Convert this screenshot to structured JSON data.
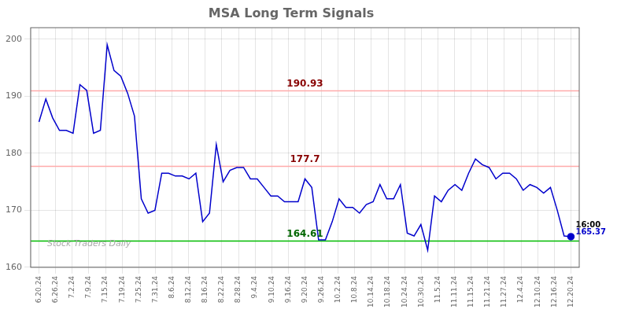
{
  "chart_data": {
    "type": "line",
    "title": "MSA Long Term Signals",
    "x": [
      0,
      0.410256,
      0.820513,
      1.230769,
      1.641026,
      2.051282,
      2.461538,
      2.871795,
      3.282051,
      3.692308,
      4.102564,
      4.512821,
      4.923077,
      5.333333,
      5.74359,
      6.153846,
      6.564103,
      6.974359,
      7.384615,
      7.794872,
      8.205128,
      8.615385,
      9.025641,
      9.435897,
      9.846154,
      10.25641,
      10.666667,
      11.076923,
      11.487179,
      11.897436,
      12.307692,
      12.717949,
      13.128205,
      13.538462,
      13.948718,
      14.358974,
      14.769231,
      15.179487,
      15.589744,
      16,
      16.410256,
      16.820513,
      17.230769,
      17.641026,
      18.051282,
      18.461538,
      18.871795,
      19.282051,
      19.692308,
      20.102564,
      20.512821,
      20.923077,
      21.333333,
      21.74359,
      22.153846,
      22.564103,
      22.974359,
      23.384615,
      23.794872,
      24.205128,
      24.615385,
      25.025641,
      25.435897,
      25.846154,
      26.25641,
      26.666667,
      27.076923,
      27.487179,
      27.897436,
      28.307692,
      28.717949,
      29.128205,
      29.538462,
      29.948718,
      30.358974,
      30.769231,
      31.179487,
      31.589744,
      32
    ],
    "values": [
      185.5,
      189.5,
      186.2,
      184.0,
      184.0,
      183.5,
      192.0,
      191.0,
      183.5,
      184.0,
      199.0,
      194.5,
      193.5,
      190.5,
      186.5,
      172.0,
      169.5,
      170.0,
      176.5,
      176.5,
      176.0,
      176.0,
      175.5,
      176.5,
      168.0,
      169.5,
      181.5,
      175.0,
      177.0,
      177.5,
      177.5,
      175.5,
      175.5,
      174.0,
      172.5,
      172.5,
      171.5,
      171.5,
      171.5,
      175.5,
      174.0,
      164.8,
      164.8,
      168.0,
      172.0,
      170.5,
      170.5,
      169.5,
      171.0,
      171.5,
      174.5,
      172.0,
      172.0,
      174.5,
      166.0,
      165.5,
      167.5,
      163.0,
      172.5,
      171.5,
      173.5,
      174.5,
      173.5,
      176.5,
      179.0,
      178.0,
      177.5,
      175.5,
      176.5,
      176.5,
      175.5,
      173.5,
      174.5,
      174.0,
      173.0,
      174.0,
      170.0,
      165.5,
      165.37
    ],
    "color": "#0000cc",
    "xlim": [
      -0.5,
      32.5
    ],
    "xticks": [
      {
        "value": 0,
        "label": "6.20.24"
      },
      {
        "value": 1,
        "label": "6.26.24"
      },
      {
        "value": 2,
        "label": "7.2.24"
      },
      {
        "value": 3,
        "label": "7.9.24"
      },
      {
        "value": 4,
        "label": "7.15.24"
      },
      {
        "value": 5,
        "label": "7.19.24"
      },
      {
        "value": 6,
        "label": "7.25.24"
      },
      {
        "value": 7,
        "label": "7.31.24"
      },
      {
        "value": 8,
        "label": "8.6.24"
      },
      {
        "value": 9,
        "label": "8.12.24"
      },
      {
        "value": 10,
        "label": "8.16.24"
      },
      {
        "value": 11,
        "label": "8.22.24"
      },
      {
        "value": 12,
        "label": "8.28.24"
      },
      {
        "value": 13,
        "label": "9.4.24"
      },
      {
        "value": 14,
        "label": "9.10.24"
      },
      {
        "value": 15,
        "label": "9.16.24"
      },
      {
        "value": 16,
        "label": "9.20.24"
      },
      {
        "value": 17,
        "label": "9.26.24"
      },
      {
        "value": 18,
        "label": "10.2.24"
      },
      {
        "value": 19,
        "label": "10.8.24"
      },
      {
        "value": 20,
        "label": "10.14.24"
      },
      {
        "value": 21,
        "label": "10.18.24"
      },
      {
        "value": 22,
        "label": "10.24.24"
      },
      {
        "value": 23,
        "label": "10.30.24"
      },
      {
        "value": 24,
        "label": "11.5.24"
      },
      {
        "value": 25,
        "label": "11.11.24"
      },
      {
        "value": 26,
        "label": "11.15.24"
      },
      {
        "value": 27,
        "label": "11.21.24"
      },
      {
        "value": 28,
        "label": "11.27.24"
      },
      {
        "value": 29,
        "label": "12.4.24"
      },
      {
        "value": 30,
        "label": "12.10.24"
      },
      {
        "value": 31,
        "label": "12.16.24"
      },
      {
        "value": 32,
        "label": "12.20.24"
      }
    ],
    "ylim": [
      160,
      202
    ],
    "yticks": [
      160,
      170,
      180,
      190,
      200
    ],
    "grid": true,
    "hlines": [
      {
        "value": 190.93,
        "label": "190.93",
        "color": "#ffaaaa",
        "label_color": "#880000"
      },
      {
        "value": 177.7,
        "label": "177.7",
        "color": "#ffaaaa",
        "label_color": "#880000"
      },
      {
        "value": 164.61,
        "label": "164.61",
        "color": "#00bb00",
        "label_color": "#006600"
      }
    ],
    "last_point": {
      "label": "16:00",
      "value_label": "165.37",
      "color": "#0000cc"
    },
    "watermark": {
      "text": "Stock Traders Daily",
      "color": "#aaaaaa"
    }
  }
}
